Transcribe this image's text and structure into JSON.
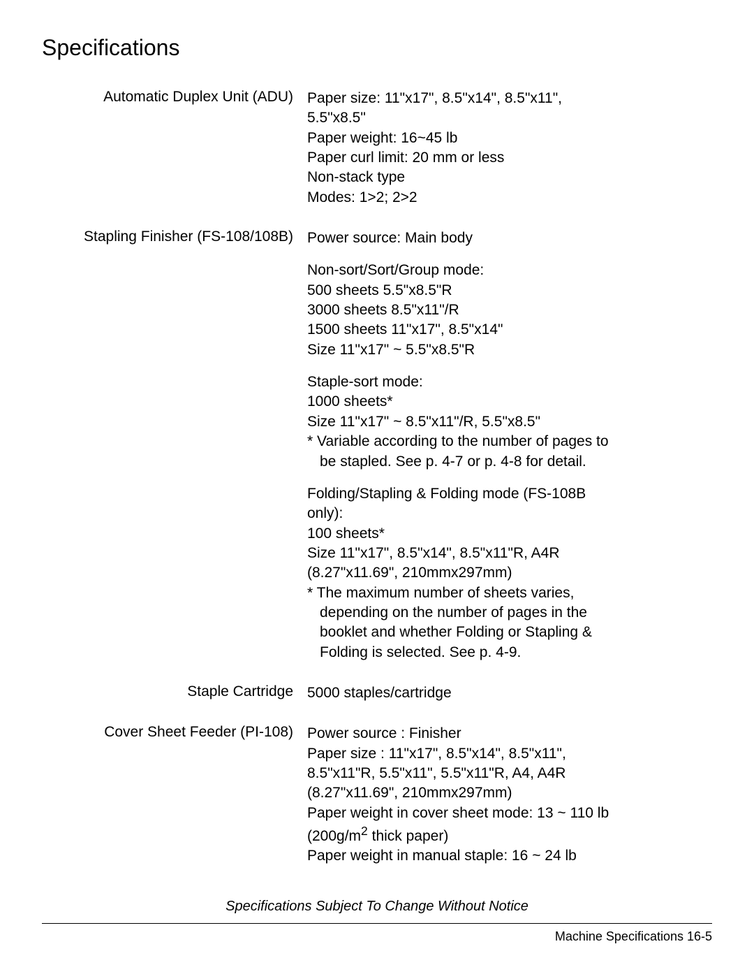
{
  "title": "Specifications",
  "sections": {
    "adu": {
      "label": "Automatic Duplex Unit (ADU)",
      "lines": [
        "Paper size: 11\"x17\", 8.5\"x14\", 8.5\"x11\",",
        "5.5\"x8.5\"",
        "Paper weight: 16~45 lb",
        "Paper curl limit: 20 mm or less",
        "Non-stack type",
        "Modes: 1>2; 2>2"
      ]
    },
    "finisher": {
      "label": "Stapling Finisher (FS-108/108B)",
      "block1": "Power source: Main body",
      "block2": [
        "Non-sort/Sort/Group mode:",
        "500 sheets 5.5\"x8.5\"R",
        "3000 sheets 8.5\"x11\"/R",
        "1500 sheets 11\"x17\", 8.5\"x14\"",
        "Size 11\"x17\" ~ 5.5\"x8.5\"R"
      ],
      "block3": [
        "Staple-sort mode:",
        "1000 sheets*",
        "Size 11\"x17\" ~ 8.5\"x11\"/R, 5.5\"x8.5\"",
        "* Variable according to the number of pages to"
      ],
      "block3_indent": "be stapled. See p. 4-7 or p. 4-8 for detail.",
      "block4": [
        "Folding/Stapling & Folding mode (FS-108B",
        "only):",
        "100 sheets*",
        "Size 11\"x17\", 8.5\"x14\", 8.5\"x11\"R, A4R",
        "(8.27\"x11.69\", 210mmx297mm)",
        "* The maximum number of sheets varies,"
      ],
      "block4_indent": [
        "depending on the number of pages in the",
        "booklet and whether Folding or Stapling &",
        "Folding is selected. See p. 4-9."
      ]
    },
    "cartridge": {
      "label": "Staple Cartridge",
      "value": "5000 staples/cartridge"
    },
    "cover_feeder": {
      "label": "Cover Sheet Feeder (PI-108)",
      "lines": [
        "Power source : Finisher",
        "Paper size : 11\"x17\", 8.5\"x14\", 8.5\"x11\",",
        "8.5\"x11\"R, 5.5\"x11\", 5.5\"x11\"R, A4, A4R",
        "(8.27\"x11.69\", 210mmx297mm)",
        "Paper weight in cover sheet mode: 13 ~ 110 lb"
      ],
      "gsm_prefix": "(200g/m",
      "gsm_suffix": " thick paper)",
      "last": "Paper weight in manual staple: 16 ~ 24 lb"
    }
  },
  "footer": {
    "note": "Specifications Subject To Change Without Notice",
    "page": "Machine Specifications 16-5"
  }
}
